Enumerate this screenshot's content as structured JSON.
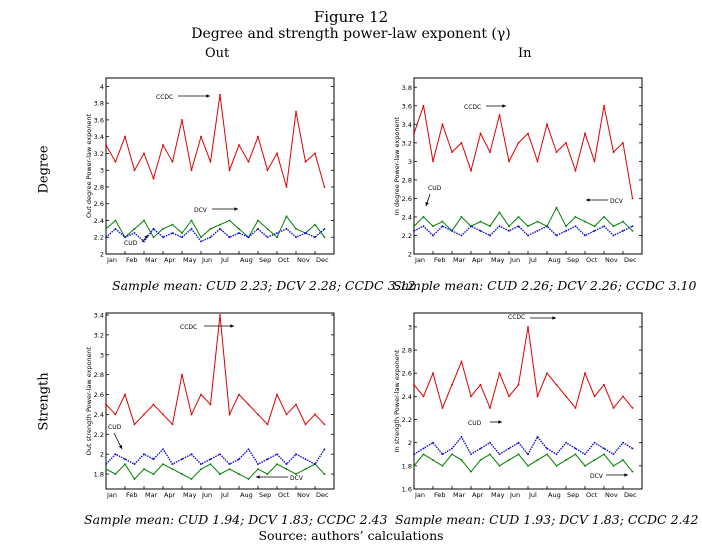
{
  "figure": {
    "title": "Figure 12",
    "subtitle": "Degree and strength power-law exponent (γ)",
    "col_labels": [
      "Out",
      "In"
    ],
    "row_labels": [
      "Degree",
      "Strength"
    ],
    "source": "Source: authors’ calculations"
  },
  "colors": {
    "CCDC": "#e00000",
    "DCV": "#008000",
    "CUD": "#1010e0"
  },
  "chart_data": [
    {
      "type": "line",
      "ylabel": "Out degree Power-law exponent",
      "ylim": [
        2,
        4.1
      ],
      "yticks": [
        2,
        2.2,
        2.4,
        2.6,
        2.8,
        3,
        3.2,
        3.4,
        3.6,
        3.8,
        4
      ],
      "ytick_labels": [
        "2",
        "2.2",
        "2.4",
        "2.6",
        "2.8",
        "3",
        "3.2",
        "3.4",
        "3.6",
        "3.8",
        "4"
      ],
      "months": [
        "Jan",
        "Feb",
        "Mar",
        "Apr",
        "May",
        "Jun",
        "Jul",
        "Aug",
        "Sep",
        "Oct",
        "Nov",
        "Dec"
      ],
      "x": [
        0,
        0.5,
        1,
        1.5,
        2,
        2.5,
        3,
        3.5,
        4,
        4.5,
        5,
        5.5,
        6,
        6.5,
        7,
        7.5,
        8,
        8.5,
        9,
        9.5,
        10,
        10.5,
        11,
        11.5
      ],
      "series": [
        {
          "name": "CCDC",
          "values": [
            3.3,
            3.1,
            3.4,
            3.0,
            3.2,
            2.9,
            3.3,
            3.1,
            3.6,
            3.0,
            3.4,
            3.1,
            3.9,
            3.0,
            3.3,
            3.1,
            3.4,
            3.0,
            3.2,
            2.8,
            3.7,
            3.1,
            3.2,
            2.8
          ]
        },
        {
          "name": "DCV",
          "values": [
            2.3,
            2.4,
            2.2,
            2.3,
            2.4,
            2.2,
            2.3,
            2.35,
            2.25,
            2.4,
            2.2,
            2.3,
            2.35,
            2.4,
            2.3,
            2.2,
            2.4,
            2.3,
            2.2,
            2.45,
            2.3,
            2.25,
            2.35,
            2.2
          ]
        },
        {
          "name": "CUD",
          "values": [
            2.2,
            2.3,
            2.2,
            2.25,
            2.15,
            2.3,
            2.2,
            2.25,
            2.2,
            2.3,
            2.15,
            2.2,
            2.3,
            2.2,
            2.25,
            2.2,
            2.3,
            2.2,
            2.25,
            2.3,
            2.2,
            2.25,
            2.2,
            2.3
          ]
        }
      ],
      "annotations": [
        "CCDC",
        "DCV",
        "CUD"
      ],
      "sample_mean": "Sample mean: CUD 2.23; DCV 2.28; CCDC 3.12"
    },
    {
      "type": "line",
      "ylabel": "In degree Power-law exponent",
      "ylim": [
        2,
        3.9
      ],
      "yticks": [
        2,
        2.2,
        2.4,
        2.6,
        2.8,
        3,
        3.2,
        3.4,
        3.6,
        3.8
      ],
      "ytick_labels": [
        "2",
        "2.2",
        "2.4",
        "2.6",
        "2.8",
        "3",
        "3.2",
        "3.4",
        "3.6",
        "3.8"
      ],
      "months": [
        "Jan",
        "Feb",
        "Mar",
        "Apr",
        "May",
        "Jun",
        "Jul",
        "Aug",
        "Sep",
        "Oct",
        "Nov",
        "Dec"
      ],
      "x": [
        0,
        0.5,
        1,
        1.5,
        2,
        2.5,
        3,
        3.5,
        4,
        4.5,
        5,
        5.5,
        6,
        6.5,
        7,
        7.5,
        8,
        8.5,
        9,
        9.5,
        10,
        10.5,
        11,
        11.5
      ],
      "series": [
        {
          "name": "CCDC",
          "values": [
            3.3,
            3.6,
            3.0,
            3.4,
            3.1,
            3.2,
            2.9,
            3.3,
            3.1,
            3.5,
            3.0,
            3.2,
            3.3,
            3.0,
            3.4,
            3.1,
            3.2,
            2.9,
            3.3,
            3.0,
            3.6,
            3.1,
            3.2,
            2.6
          ]
        },
        {
          "name": "DCV",
          "values": [
            2.3,
            2.4,
            2.3,
            2.35,
            2.25,
            2.4,
            2.3,
            2.35,
            2.3,
            2.45,
            2.3,
            2.4,
            2.3,
            2.35,
            2.3,
            2.5,
            2.3,
            2.4,
            2.35,
            2.3,
            2.4,
            2.3,
            2.35,
            2.25
          ]
        },
        {
          "name": "CUD",
          "values": [
            2.25,
            2.3,
            2.2,
            2.3,
            2.25,
            2.2,
            2.3,
            2.25,
            2.2,
            2.3,
            2.25,
            2.3,
            2.2,
            2.25,
            2.3,
            2.2,
            2.25,
            2.3,
            2.2,
            2.25,
            2.3,
            2.2,
            2.25,
            2.3
          ]
        }
      ],
      "annotations": [
        "CCDC",
        "DCV",
        "CUD"
      ],
      "sample_mean": "Sample mean: CUD 2.26; DCV 2.26; CCDC 3.10"
    },
    {
      "type": "line",
      "ylabel": "Out strength Power-law exponent",
      "ylim": [
        1.65,
        3.42
      ],
      "yticks": [
        1.8,
        2,
        2.2,
        2.4,
        2.6,
        2.8,
        3,
        3.2,
        3.4
      ],
      "ytick_labels": [
        "1.8",
        "2",
        "2.2",
        "2.4",
        "2.6",
        "2.8",
        "3",
        "3.2",
        "3.4"
      ],
      "months": [
        "Jan",
        "Feb",
        "Mar",
        "Apr",
        "May",
        "Jun",
        "Jul",
        "Aug",
        "Sep",
        "Oct",
        "Nov",
        "Dec"
      ],
      "x": [
        0,
        0.5,
        1,
        1.5,
        2,
        2.5,
        3,
        3.5,
        4,
        4.5,
        5,
        5.5,
        6,
        6.5,
        7,
        7.5,
        8,
        8.5,
        9,
        9.5,
        10,
        10.5,
        11,
        11.5
      ],
      "series": [
        {
          "name": "CCDC",
          "values": [
            2.5,
            2.4,
            2.6,
            2.3,
            2.4,
            2.5,
            2.4,
            2.3,
            2.8,
            2.4,
            2.6,
            2.5,
            3.4,
            2.4,
            2.6,
            2.5,
            2.4,
            2.3,
            2.6,
            2.4,
            2.5,
            2.3,
            2.4,
            2.3
          ]
        },
        {
          "name": "DCV",
          "values": [
            1.85,
            1.8,
            1.9,
            1.75,
            1.85,
            1.8,
            1.9,
            1.85,
            1.8,
            1.75,
            1.85,
            1.9,
            1.8,
            1.85,
            1.8,
            1.75,
            1.85,
            1.8,
            1.9,
            1.85,
            1.8,
            1.85,
            1.9,
            1.8
          ]
        },
        {
          "name": "CUD",
          "values": [
            1.9,
            2.0,
            1.95,
            1.9,
            2.0,
            1.95,
            2.05,
            1.9,
            1.95,
            2.0,
            1.9,
            1.95,
            2.0,
            1.9,
            1.95,
            2.05,
            1.9,
            1.95,
            2.0,
            1.9,
            2.0,
            1.95,
            1.9,
            2.05
          ]
        }
      ],
      "annotations": [
        "CCDC",
        "DCV",
        "CUD"
      ],
      "sample_mean": "Sample mean: CUD 1.94; DCV 1.83; CCDC 2.43"
    },
    {
      "type": "line",
      "ylabel": "In strength Power-law exponent",
      "ylim": [
        1.6,
        3.12
      ],
      "yticks": [
        1.6,
        1.8,
        2,
        2.2,
        2.4,
        2.6,
        2.8,
        3
      ],
      "ytick_labels": [
        "1.6",
        "1.8",
        "2",
        "2.2",
        "2.4",
        "2.6",
        "2.8",
        "3"
      ],
      "months": [
        "Jan",
        "Feb",
        "Mar",
        "Apr",
        "May",
        "Jun",
        "Jul",
        "Aug",
        "Sep",
        "Oct",
        "Nov",
        "Dec"
      ],
      "x": [
        0,
        0.5,
        1,
        1.5,
        2,
        2.5,
        3,
        3.5,
        4,
        4.5,
        5,
        5.5,
        6,
        6.5,
        7,
        7.5,
        8,
        8.5,
        9,
        9.5,
        10,
        10.5,
        11,
        11.5
      ],
      "series": [
        {
          "name": "CCDC",
          "values": [
            2.5,
            2.4,
            2.6,
            2.3,
            2.5,
            2.7,
            2.4,
            2.5,
            2.3,
            2.6,
            2.4,
            2.5,
            3.0,
            2.4,
            2.6,
            2.5,
            2.4,
            2.3,
            2.6,
            2.4,
            2.5,
            2.3,
            2.4,
            2.3
          ]
        },
        {
          "name": "DCV",
          "values": [
            1.8,
            1.9,
            1.85,
            1.8,
            1.9,
            1.85,
            1.75,
            1.85,
            1.9,
            1.8,
            1.85,
            1.9,
            1.8,
            1.85,
            1.9,
            1.8,
            1.85,
            1.9,
            1.8,
            1.85,
            1.9,
            1.8,
            1.85,
            1.75
          ]
        },
        {
          "name": "CUD",
          "values": [
            1.9,
            1.95,
            2.0,
            1.9,
            1.95,
            2.05,
            1.9,
            1.95,
            2.0,
            1.9,
            1.95,
            2.0,
            1.9,
            2.05,
            1.95,
            1.9,
            2.0,
            1.95,
            1.9,
            2.0,
            1.95,
            1.9,
            2.0,
            1.95
          ]
        }
      ],
      "annotations": [
        "CCDC",
        "CUD",
        "DCV"
      ],
      "sample_mean": "Sample mean: CUD 1.93; DCV 1.83; CCDC 2.42"
    }
  ]
}
